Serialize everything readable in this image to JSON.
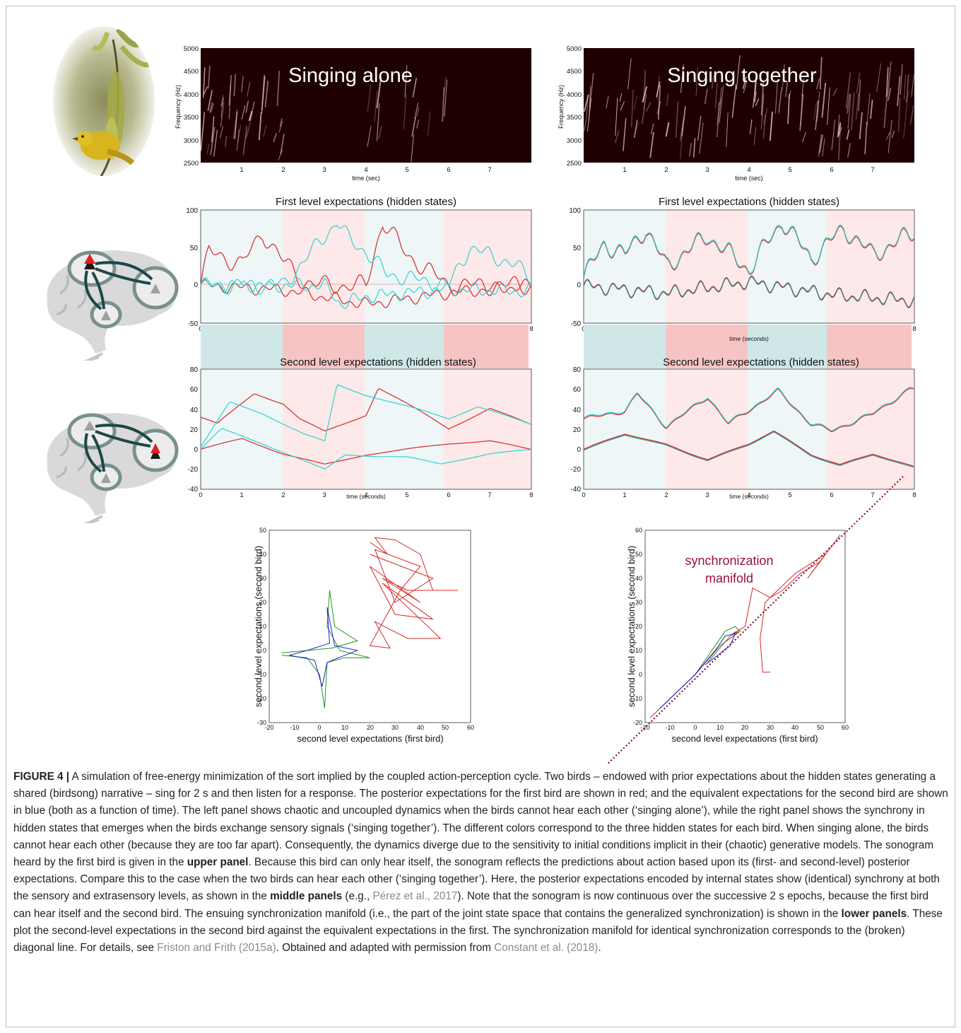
{
  "colors": {
    "first_bird": "#d62828",
    "second_bird": "#2ed3d3",
    "second_bird_dark": "#2a8a8a",
    "manifold_line": "#8b0a3c",
    "green_trace": "#1a9a1a",
    "blue_trace": "#2020d0",
    "listen_band": "#e9f4f5",
    "sing_band": "#fde7e7",
    "listen_band_dark": "#cfe7e7",
    "sing_band_dark": "#f7c4c4",
    "sonogram_bg": "#1e0000",
    "manifold_label": "#9a1040"
  },
  "icons": [
    "bird-photo-icon",
    "brain-icon-upper",
    "brain-icon-lower"
  ],
  "sonograms": [
    {
      "title": "Singing alone",
      "ylabel": "Frequency (Hz)",
      "xlabel": "time (sec)",
      "yticks": [
        "5000",
        "4500",
        "4000",
        "3500",
        "3000",
        "2500"
      ],
      "xticks": [
        "1",
        "2",
        "3",
        "4",
        "5",
        "6",
        "7"
      ]
    },
    {
      "title": "Singing together",
      "ylabel": "Frequency (Hz)",
      "xlabel": "time (sec)",
      "yticks": [
        "5000",
        "4500",
        "4000",
        "3500",
        "3000",
        "2500"
      ],
      "xticks": [
        "1",
        "2",
        "3",
        "4",
        "5",
        "6",
        "7"
      ]
    }
  ],
  "first_level": [
    {
      "title": "First level expectations (hidden states)",
      "xlabel": "",
      "yticks": [
        "100",
        "50",
        "0",
        "-50"
      ],
      "xticks": [
        "0",
        "1",
        "2",
        "3",
        "4",
        "5",
        "6",
        "7",
        "8"
      ]
    },
    {
      "title": "First level expectations (hidden states)",
      "xlabel": "time (seconds)",
      "yticks": [
        "100",
        "50",
        "0",
        "-50"
      ],
      "xticks": [
        "0",
        "1",
        "2",
        "3",
        "4",
        "5",
        "6",
        "7",
        "8"
      ]
    }
  ],
  "second_level": [
    {
      "title": "Second level expectations (hidden states)",
      "xlabel": "time (seconds)",
      "yticks": [
        "80",
        "60",
        "40",
        "20",
        "0",
        "-20",
        "-40"
      ],
      "xticks": [
        "0",
        "1",
        "2",
        "3",
        "4",
        "5",
        "6",
        "7",
        "8"
      ]
    },
    {
      "title": "Second level expectations (hidden states)",
      "xlabel": "time (seconds)",
      "yticks": [
        "80",
        "60",
        "40",
        "20",
        "0",
        "-20",
        "-40"
      ],
      "xticks": [
        "0",
        "1",
        "2",
        "3",
        "4",
        "5",
        "6",
        "7",
        "8"
      ]
    }
  ],
  "manifolds": [
    {
      "xlabel": "second level expectations (first bird)",
      "ylabel": "second level expectations (second bird)",
      "yticks": [
        "50",
        "40",
        "30",
        "20",
        "10",
        "0",
        "-10",
        "-20",
        "-30"
      ],
      "xticks": [
        "-20",
        "-10",
        "0",
        "10",
        "20",
        "30",
        "40",
        "50",
        "60"
      ],
      "annotation": ""
    },
    {
      "xlabel": "second level expectations (first bird)",
      "ylabel": "second level expectations (second bird)",
      "yticks": [
        "60",
        "50",
        "40",
        "30",
        "20",
        "10",
        "0",
        "-10",
        "-20"
      ],
      "xticks": [
        "-20",
        "-10",
        "0",
        "10",
        "20",
        "30",
        "40",
        "50",
        "60"
      ],
      "annotation_line1": "synchronization",
      "annotation_line2": "manifold"
    }
  ],
  "chart_data": [
    {
      "type": "heatmap",
      "title": "Singing alone",
      "xlabel": "time (sec)",
      "ylabel": "Frequency (Hz)",
      "xlim": [
        0,
        8
      ],
      "ylim": [
        2500,
        5000
      ],
      "sound_epochs": [
        [
          0,
          2
        ],
        [
          4,
          6
        ]
      ]
    },
    {
      "type": "heatmap",
      "title": "Singing together",
      "xlabel": "time (sec)",
      "ylabel": "Frequency (Hz)",
      "xlim": [
        0,
        8
      ],
      "ylim": [
        2500,
        5000
      ],
      "sound_epochs": [
        [
          0,
          8
        ]
      ]
    },
    {
      "type": "line",
      "title": "First level expectations (hidden states)",
      "xlim": [
        0,
        8
      ],
      "ylim": [
        -50,
        100
      ],
      "series": [
        {
          "values_at_t": [
            [
              0,
              0
            ],
            [
              0.2,
              45
            ],
            [
              1,
              28
            ],
            [
              1.5,
              70
            ],
            [
              2,
              32
            ],
            [
              2.5,
              5
            ],
            [
              3,
              0
            ],
            [
              4,
              0
            ],
            [
              4.4,
              85
            ],
            [
              5,
              40
            ],
            [
              6,
              0
            ],
            [
              8,
              0
            ]
          ]
        },
        {
          "values_at_t": [
            [
              0,
              0
            ],
            [
              2,
              0
            ],
            [
              3.3,
              85
            ],
            [
              3.6,
              60
            ],
            [
              4,
              45
            ],
            [
              4.5,
              15
            ],
            [
              6,
              0
            ],
            [
              6.5,
              50
            ],
            [
              7.5,
              30
            ],
            [
              8,
              10
            ]
          ]
        }
      ]
    },
    {
      "type": "line",
      "title": "First level expectations (hidden states)",
      "xlabel": "time (seconds)",
      "xlim": [
        0,
        8
      ],
      "ylim": [
        -50,
        100
      ],
      "series": [
        {
          "values_at_t": [
            [
              0,
              10
            ],
            [
              0.5,
              55
            ],
            [
              1,
              40
            ],
            [
              1.5,
              75
            ],
            [
              2,
              25
            ],
            [
              3,
              65
            ],
            [
              4,
              20
            ],
            [
              4.8,
              85
            ],
            [
              5.5,
              35
            ],
            [
              6.3,
              75
            ],
            [
              7,
              40
            ],
            [
              8,
              70
            ]
          ]
        }
      ]
    },
    {
      "type": "line",
      "title": "Second level expectations (hidden states)",
      "xlabel": "time (seconds)",
      "xlim": [
        0,
        8
      ],
      "ylim": [
        -40,
        80
      ],
      "series": [
        {
          "values_at_t": [
            [
              0,
              32
            ],
            [
              0.4,
              25
            ],
            [
              1.3,
              55
            ],
            [
              2,
              45
            ],
            [
              2.4,
              30
            ],
            [
              3,
              18
            ],
            [
              4,
              35
            ],
            [
              4.3,
              62
            ],
            [
              5,
              45
            ],
            [
              6,
              20
            ],
            [
              7,
              40
            ],
            [
              8,
              25
            ]
          ]
        },
        {
          "values_at_t": [
            [
              0,
              2
            ],
            [
              0.7,
              46
            ],
            [
              1.5,
              35
            ],
            [
              2.5,
              15
            ],
            [
              3,
              8
            ],
            [
              3.3,
              65
            ],
            [
              4,
              55
            ],
            [
              5.2,
              40
            ],
            [
              6,
              30
            ],
            [
              6.7,
              42
            ],
            [
              8,
              25
            ]
          ]
        }
      ]
    },
    {
      "type": "line",
      "title": "Second level expectations (hidden states)",
      "xlabel": "time (seconds)",
      "xlim": [
        0,
        8
      ],
      "ylim": [
        -40,
        80
      ],
      "series": [
        {
          "values_at_t": [
            [
              0,
              30
            ],
            [
              1,
              38
            ],
            [
              1.3,
              55
            ],
            [
              2,
              22
            ],
            [
              3,
              52
            ],
            [
              3.5,
              25
            ],
            [
              4.7,
              58
            ],
            [
              5.5,
              25
            ],
            [
              6,
              18
            ],
            [
              7,
              35
            ],
            [
              7.9,
              60
            ]
          ]
        }
      ]
    },
    {
      "type": "scatter",
      "xlabel": "second level expectations (first bird)",
      "ylabel": "second level expectations (second bird)",
      "xlim": [
        -20,
        60
      ],
      "ylim": [
        -30,
        50
      ]
    },
    {
      "type": "scatter",
      "xlabel": "second level expectations (first bird)",
      "ylabel": "second level expectations (second bird)",
      "xlim": [
        -20,
        60
      ],
      "ylim": [
        -20,
        60
      ],
      "diagonal": "y = x"
    }
  ],
  "caption": {
    "lead": "FIGURE 4 |",
    "p1": " A simulation of free-energy minimization of the sort implied by the coupled action-perception cycle. Two birds – endowed with prior expectations about the hidden states generating a shared (birdsong) narrative – sing for 2 s and then listen for a response. The posterior expectations for the first bird are shown in red; and the equivalent expectations for the second bird are shown in blue (both as a function of time). The left panel shows chaotic and uncoupled dynamics when the birds cannot hear each other (‘singing alone’), while the right panel shows the synchrony in hidden states that emerges when the birds exchange sensory signals (‘singing together’). The different colors correspond to the three hidden states for each bird. When singing alone, the birds cannot hear each other (because they are too far apart). Consequently, the dynamics diverge due to the sensitivity to initial conditions implicit in their (chaotic) generative models. The sonogram heard by the first bird is given in the ",
    "b1": "upper panel",
    "p2": ". Because this bird can only hear itself, the sonogram reflects the predictions about action based upon its (first- and second-level) posterior expectations. Compare this to the case when the two birds can hear each other (‘singing together’). Here, the posterior expectations encoded by internal states show (identical) synchrony at both the sensory and extrasensory levels, as shown in the ",
    "b2": "middle panels",
    "p3": " (e.g., ",
    "ref1": "Pérez et al., 2017",
    "p4": "). Note that the sonogram is now continuous over the successive 2 s epochs, because the first bird can hear itself and the second bird. The ensuing synchronization manifold (i.e., the part of the joint state space that contains the generalized synchronization) is shown in the ",
    "b3": "lower panels",
    "p5": ". These plot the second-level expectations in the second bird against the equivalent expectations in the first. The synchronization manifold for identical synchronization corresponds to the (broken) diagonal line. For details, see ",
    "ref2": "Friston and Frith (2015a)",
    "p6": ". Obtained and adapted with permission from ",
    "ref3": "Constant et al. (2018)",
    "p7": "."
  }
}
